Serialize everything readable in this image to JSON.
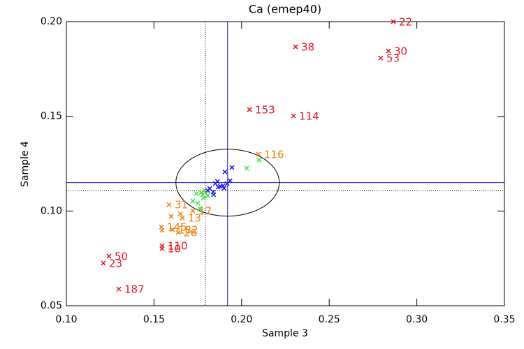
{
  "chart_data": {
    "type": "scatter",
    "title": "Ca (emep40)",
    "x_label": "Sample 3",
    "y_label": "Sample 4",
    "xlim": [
      0.1,
      0.35
    ],
    "ylim": [
      0.05,
      0.2
    ],
    "xticks": [
      {
        "value": 0.1,
        "label": "0.10"
      },
      {
        "value": 0.15,
        "label": "0.15"
      },
      {
        "value": 0.2,
        "label": "0.20"
      },
      {
        "value": 0.25,
        "label": "0.25"
      },
      {
        "value": 0.3,
        "label": "0.30"
      },
      {
        "value": 0.35,
        "label": "0.35"
      }
    ],
    "yticks": [
      {
        "value": 0.05,
        "label": "0.05"
      },
      {
        "value": 0.1,
        "label": "0.10"
      },
      {
        "value": 0.15,
        "label": "0.15"
      },
      {
        "value": 0.2,
        "label": "0.20"
      }
    ],
    "grid": false,
    "series": [
      {
        "color": "#e8141c",
        "x": [
          0.2866,
          0.2308,
          0.2838,
          0.2794,
          0.2045,
          0.2296,
          0.1243,
          0.1211,
          0.1546,
          0.1546,
          0.1299
        ],
        "values": [
          0.2,
          0.1867,
          0.1845,
          0.1808,
          0.1536,
          0.1502,
          0.0762,
          0.0725,
          0.0817,
          0.0802,
          0.0588
        ],
        "labels": [
          "22",
          "38",
          "30",
          "53",
          "153",
          "114",
          "50",
          "23",
          "110",
          "10",
          "187"
        ]
      },
      {
        "color": "#f07f0a",
        "x": [
          0.2096,
          0.1586,
          0.1722,
          0.1662,
          0.1542,
          0.1606,
          0.1638,
          0.1598,
          0.1546,
          0.165
        ],
        "values": [
          0.13,
          0.1034,
          0.1001,
          0.0964,
          0.0916,
          0.0902,
          0.0887,
          0.0972,
          0.0898,
          0.0985
        ],
        "labels": [
          "116",
          "31",
          "17",
          "13",
          "145",
          "182",
          "26",
          null,
          null,
          null
        ]
      },
      {
        "color": "#3de23d",
        "x": [
          0.21,
          0.2029,
          0.1722,
          0.177,
          0.1778,
          0.179,
          0.1806,
          0.175,
          0.1762,
          0.1782,
          0.1742
        ],
        "values": [
          0.127,
          0.1226,
          0.1053,
          0.1097,
          0.1086,
          0.1108,
          0.1082,
          0.104,
          0.1012,
          0.1068,
          0.1092
        ]
      },
      {
        "color": "#1a1ae0",
        "x": [
          0.1945,
          0.1905,
          0.185,
          0.1862,
          0.1818,
          0.1838,
          0.1878,
          0.1894,
          0.1918,
          0.1934,
          0.1806,
          0.1866,
          0.184,
          0.19
        ],
        "values": [
          0.123,
          0.1207,
          0.1145,
          0.1156,
          0.1119,
          0.1101,
          0.113,
          0.1134,
          0.1145,
          0.116,
          0.1108,
          0.1126,
          0.1086,
          0.112
        ]
      }
    ],
    "reference_lines": [
      {
        "axis": "x",
        "value": 0.192,
        "color": "#1a1ae0",
        "style": "solid"
      },
      {
        "axis": "y",
        "value": 0.115,
        "color": "#1a1ae0",
        "style": "solid"
      },
      {
        "axis": "x",
        "value": 0.1793,
        "color": "#000000",
        "style": "dotted"
      },
      {
        "axis": "y",
        "value": 0.1108,
        "color": "#000000",
        "style": "dotted"
      }
    ],
    "ellipse": {
      "cx": 0.192,
      "cy": 0.115,
      "rx": 0.0295,
      "ry": 0.0177,
      "color": "#000000"
    }
  }
}
